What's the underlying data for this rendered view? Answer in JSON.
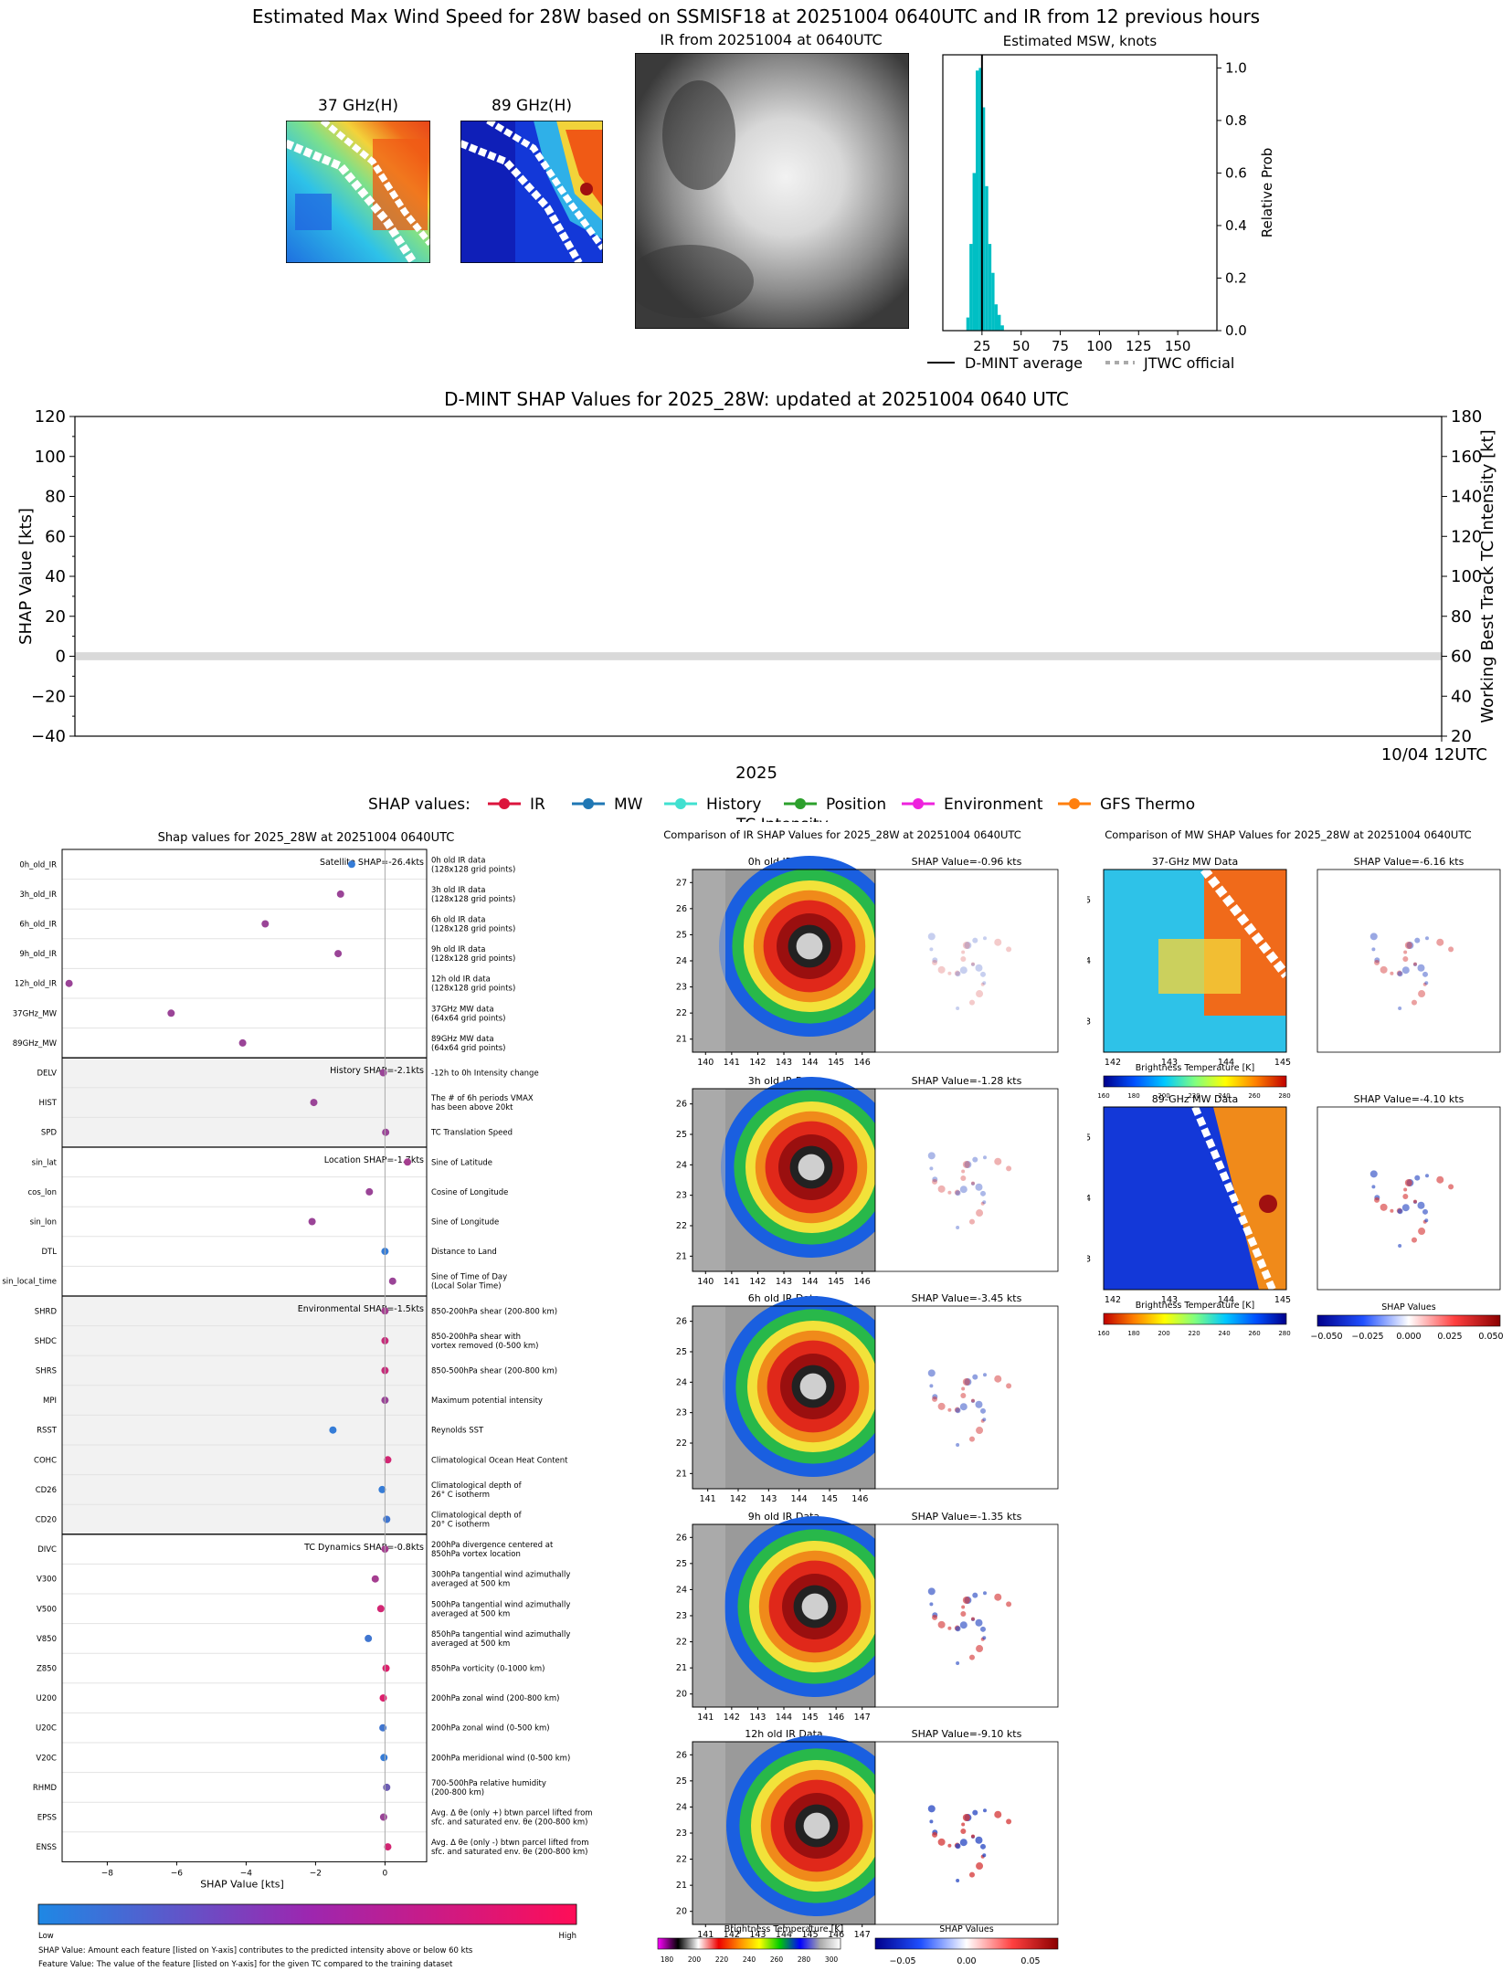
{
  "header": {
    "title": "Estimated Max Wind Speed for 28W based on SSMISF18 at 20251004 0640UTC and IR from 12 previous hours",
    "mw37_label": "37 GHz(H)",
    "mw89_label": "89 GHz(H)",
    "ir_label": "IR from 20251004 at 0640UTC"
  },
  "colors": {
    "ir": "#dc143c",
    "mw": "#1f77b4",
    "history": "#40e0d0",
    "position": "#2ca02c",
    "environment": "#ee22dd",
    "gfs": "#ff7f0e",
    "hist_bar": "#00bfc4",
    "shap_low": "#1e88e5",
    "shap_high": "#ff0d57"
  },
  "shap_panel": {
    "title": "Shap values for 2025_28W at 20251004 0640UTC",
    "xlabel": "SHAP Value [kts]",
    "colorbar_low": "Low",
    "colorbar_high": "High",
    "note1": "SHAP Value: Amount each feature [listed on Y-axis] contributes to the predicted intensity above or below 60 kts",
    "note2": "Feature Value: The value of the feature [listed on Y-axis] for the given TC compared to the training dataset"
  },
  "ir_compare": {
    "title": "Comparison of IR SHAP Values for 2025_28W at 20251004 0640UTC",
    "colorbar_label": "Brightness Temperature [K]",
    "colorbar_ticks": [
      "180",
      "200",
      "220",
      "240",
      "260",
      "280",
      "300"
    ],
    "shap_colorbar_label": "SHAP Values",
    "shap_colorbar_ticks": [
      "−0.05",
      "0.00",
      "0.05"
    ],
    "rows": [
      {
        "data_title": "0h old IR Data",
        "shap_title": "SHAP Value=-0.96 kts",
        "yticks": [
          "27",
          "26",
          "25",
          "24",
          "23",
          "22",
          "21"
        ],
        "xticks": [
          "140",
          "141",
          "142",
          "143",
          "144",
          "145",
          "146"
        ]
      },
      {
        "data_title": "3h old IR Data",
        "shap_title": "SHAP Value=-1.28 kts",
        "yticks": [
          "26",
          "25",
          "24",
          "23",
          "22",
          "21"
        ],
        "xticks": [
          "140",
          "141",
          "142",
          "143",
          "144",
          "145",
          "146"
        ]
      },
      {
        "data_title": "6h old IR Data",
        "shap_title": "SHAP Value=-3.45 kts",
        "yticks": [
          "26",
          "25",
          "24",
          "23",
          "22",
          "21"
        ],
        "xticks": [
          "141",
          "142",
          "143",
          "144",
          "145",
          "146"
        ]
      },
      {
        "data_title": "9h old IR Data",
        "shap_title": "SHAP Value=-1.35 kts",
        "yticks": [
          "26",
          "25",
          "24",
          "23",
          "22",
          "21",
          "20"
        ],
        "xticks": [
          "141",
          "142",
          "143",
          "144",
          "145",
          "146",
          "147"
        ]
      },
      {
        "data_title": "12h old IR Data",
        "shap_title": "SHAP Value=-9.10 kts",
        "yticks": [
          "26",
          "25",
          "24",
          "23",
          "22",
          "21",
          "20"
        ],
        "xticks": [
          "141",
          "142",
          "143",
          "144",
          "145",
          "146",
          "147"
        ]
      }
    ]
  },
  "mw_compare": {
    "title": "Comparison of MW SHAP Values for 2025_28W at 20251004 0640UTC",
    "colorbar_label": "Brightness Temperature [K]",
    "colorbar_ticks": [
      "160",
      "180",
      "200",
      "220",
      "240",
      "260",
      "280"
    ],
    "shap_colorbar_label": "SHAP Values",
    "shap_colorbar_ticks": [
      "−0.050",
      "−0.025",
      "0.000",
      "0.025",
      "0.050"
    ],
    "yticks": [
      "25",
      "24",
      "23"
    ],
    "xticks": [
      "142",
      "143",
      "144",
      "145"
    ],
    "rows": [
      {
        "data_title": "37-GHz MW Data",
        "shap_title": "SHAP Value=-6.16 kts"
      },
      {
        "data_title": "89-GHz MW Data",
        "shap_title": "SHAP Value=-4.10 kts"
      }
    ]
  },
  "chart_data": [
    {
      "type": "bar",
      "title": "Estimated MSW, knots",
      "xlabel": "",
      "ylabel": "Relative Prob",
      "xlim": [
        0,
        175
      ],
      "ylim": [
        0,
        1.05
      ],
      "xticks": [
        25,
        50,
        75,
        100,
        125,
        150
      ],
      "yticks": [
        0.0,
        0.2,
        0.4,
        0.6,
        0.8,
        1.0
      ],
      "bins": [
        16,
        18,
        20,
        22,
        24,
        26,
        28,
        30,
        32,
        34,
        36,
        38
      ],
      "values": [
        0.05,
        0.33,
        0.6,
        0.99,
        1.0,
        0.85,
        0.55,
        0.33,
        0.22,
        0.1,
        0.06,
        0.02
      ],
      "dmint_average": 25,
      "legend": [
        "D-MINT average",
        "JTWC official"
      ]
    },
    {
      "type": "line",
      "title": "D-MINT SHAP Values for 2025_28W: updated at 20251004 0640 UTC",
      "xlabel": "2025",
      "ylabel": "SHAP Value [kts]",
      "ylabel_right": "Working Best Track TC Intensity [kt]",
      "ylim": [
        -40,
        120
      ],
      "ylim_right": [
        20,
        180
      ],
      "yticks": [
        -40,
        -20,
        0,
        20,
        40,
        60,
        80,
        100,
        120
      ],
      "yticks_right": [
        20,
        40,
        60,
        80,
        100,
        120,
        140,
        160,
        180
      ],
      "xtick": "10/04 12UTC",
      "legend_title": "SHAP values:",
      "legend": [
        "IR",
        "MW",
        "History",
        "Position",
        "Environment",
        "GFS Thermo",
        "TC Intensity"
      ],
      "series": []
    },
    {
      "type": "scatter",
      "title": "Shap values for 2025_28W at 20251004 0640UTC",
      "xlabel": "SHAP Value [kts]",
      "xlim": [
        -9.3,
        1.2
      ],
      "xticks": [
        -8,
        -6,
        -4,
        -2,
        0
      ],
      "xtick_labels": [
        "−8",
        "−6",
        "−4",
        "−2",
        "0"
      ],
      "groups": [
        {
          "label": "Satellite SHAP=-26.4kts",
          "features": [
            {
              "name": "0h_old_IR",
              "desc": [
                "0h old IR data",
                "(128x128 grid points)"
              ],
              "shap": -0.96,
              "feature_value": 0.1
            },
            {
              "name": "3h_old_IR",
              "desc": [
                "3h old IR data",
                "(128x128 grid points)"
              ],
              "shap": -1.28,
              "feature_value": 0.55
            },
            {
              "name": "6h_old_IR",
              "desc": [
                "6h old IR data",
                "(128x128 grid points)"
              ],
              "shap": -3.45,
              "feature_value": 0.55
            },
            {
              "name": "9h_old_IR",
              "desc": [
                "9h old IR data",
                "(128x128 grid points)"
              ],
              "shap": -1.35,
              "feature_value": 0.55
            },
            {
              "name": "12h_old_IR",
              "desc": [
                "12h old IR data",
                "(128x128 grid points)"
              ],
              "shap": -9.1,
              "feature_value": 0.55
            },
            {
              "name": "37GHz_MW",
              "desc": [
                "37GHz MW data",
                "(64x64 grid points)"
              ],
              "shap": -6.16,
              "feature_value": 0.55
            },
            {
              "name": "89GHz_MW",
              "desc": [
                "89GHz MW data",
                "(64x64 grid points)"
              ],
              "shap": -4.1,
              "feature_value": 0.55
            }
          ]
        },
        {
          "label": "History SHAP=-2.1kts",
          "features": [
            {
              "name": "DELV",
              "desc": [
                "-12h to 0h Intensity change"
              ],
              "shap": -0.05,
              "feature_value": 0.55
            },
            {
              "name": "HIST",
              "desc": [
                "The # of 6h periods VMAX",
                "has been above 20kt"
              ],
              "shap": -2.05,
              "feature_value": 0.55
            },
            {
              "name": "SPD",
              "desc": [
                "TC Translation Speed"
              ],
              "shap": 0.02,
              "feature_value": 0.55
            }
          ]
        },
        {
          "label": "Location SHAP=-1.7kts",
          "features": [
            {
              "name": "sin_lat",
              "desc": [
                "Sine of Latitude"
              ],
              "shap": 0.65,
              "feature_value": 0.6
            },
            {
              "name": "cos_lon",
              "desc": [
                "Cosine of Longitude"
              ],
              "shap": -0.45,
              "feature_value": 0.55
            },
            {
              "name": "sin_lon",
              "desc": [
                "Sine of Longitude"
              ],
              "shap": -2.1,
              "feature_value": 0.55
            },
            {
              "name": "DTL",
              "desc": [
                "Distance to Land"
              ],
              "shap": 0.0,
              "feature_value": 0.1
            },
            {
              "name": "sin_local_time",
              "desc": [
                "Sine of Time of Day",
                "(Local Solar Time)"
              ],
              "shap": 0.22,
              "feature_value": 0.55
            }
          ]
        },
        {
          "label": "Environmental SHAP=-1.5kts",
          "features": [
            {
              "name": "SHRD",
              "desc": [
                "850-200hPa shear (200-800 km)"
              ],
              "shap": 0.0,
              "feature_value": 0.6
            },
            {
              "name": "SHDC",
              "desc": [
                "850-200hPa shear with",
                "vortex removed (0-500 km)"
              ],
              "shap": 0.0,
              "feature_value": 0.75
            },
            {
              "name": "SHRS",
              "desc": [
                "850-500hPa shear (200-800 km)"
              ],
              "shap": 0.0,
              "feature_value": 0.75
            },
            {
              "name": "MPI",
              "desc": [
                "Maximum potential intensity"
              ],
              "shap": 0.0,
              "feature_value": 0.55
            },
            {
              "name": "RSST",
              "desc": [
                "Reynolds SST"
              ],
              "shap": -1.5,
              "feature_value": 0.1
            },
            {
              "name": "COHC",
              "desc": [
                "Climatological Ocean Heat Content"
              ],
              "shap": 0.08,
              "feature_value": 0.8
            },
            {
              "name": "CD26",
              "desc": [
                "Climatological depth of",
                "26° C isotherm"
              ],
              "shap": -0.08,
              "feature_value": 0.1
            },
            {
              "name": "CD20",
              "desc": [
                "Climatological depth of",
                "20° C isotherm"
              ],
              "shap": 0.05,
              "feature_value": 0.15
            }
          ]
        },
        {
          "label": "TC Dynamics SHAP=-0.8kts",
          "features": [
            {
              "name": "DIVC",
              "desc": [
                "200hPa divergence centered at",
                "850hPa vortex location"
              ],
              "shap": 0.0,
              "feature_value": 0.6
            },
            {
              "name": "V300",
              "desc": [
                "300hPa tangential wind azimuthally",
                "averaged at 500 km"
              ],
              "shap": -0.28,
              "feature_value": 0.6
            },
            {
              "name": "V500",
              "desc": [
                "500hPa tangential wind azimuthally",
                "averaged at 500 km"
              ],
              "shap": -0.12,
              "feature_value": 0.8
            },
            {
              "name": "V850",
              "desc": [
                "850hPa tangential wind azimuthally",
                "averaged at 500 km"
              ],
              "shap": -0.48,
              "feature_value": 0.15
            },
            {
              "name": "Z850",
              "desc": [
                "850hPa vorticity (0-1000 km)"
              ],
              "shap": 0.03,
              "feature_value": 0.85
            },
            {
              "name": "U200",
              "desc": [
                "200hPa zonal wind (200-800 km)"
              ],
              "shap": -0.05,
              "feature_value": 0.85
            },
            {
              "name": "U20C",
              "desc": [
                "200hPa zonal wind (0-500 km)"
              ],
              "shap": -0.06,
              "feature_value": 0.15
            },
            {
              "name": "V20C",
              "desc": [
                "200hPa meridional wind (0-500 km)"
              ],
              "shap": -0.03,
              "feature_value": 0.1
            },
            {
              "name": "RHMD",
              "desc": [
                "700-500hPa relative humidity",
                "(200-800 km)"
              ],
              "shap": 0.05,
              "feature_value": 0.35
            },
            {
              "name": "EPSS",
              "desc": [
                "Avg. Δ θe (only +) btwn parcel lifted from",
                "sfc. and saturated env. θe (200-800 km)"
              ],
              "shap": -0.04,
              "feature_value": 0.55
            },
            {
              "name": "ENSS",
              "desc": [
                "Avg. Δ θe (only -) btwn parcel lifted from",
                "sfc. and saturated env. θe (200-800 km)"
              ],
              "shap": 0.08,
              "feature_value": 0.8
            }
          ]
        }
      ]
    }
  ]
}
